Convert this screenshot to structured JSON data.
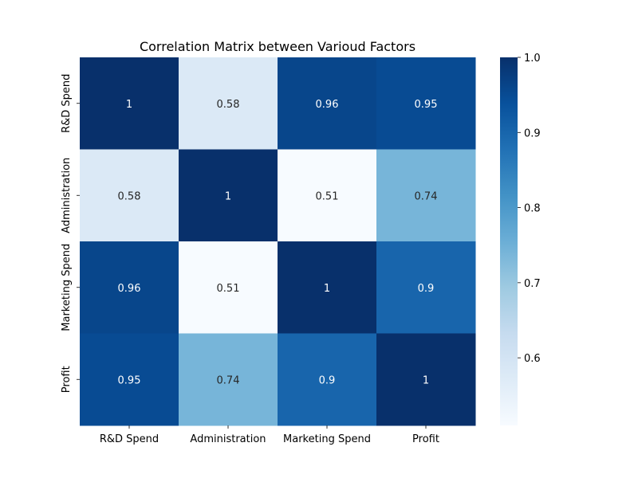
{
  "chart_data": {
    "type": "heatmap",
    "title": "Correlation Matrix between Varioud Factors",
    "x_categories": [
      "R&D Spend",
      "Administration",
      "Marketing Spend",
      "Profit"
    ],
    "y_categories": [
      "R&D Spend",
      "Administration",
      "Marketing Spend",
      "Profit"
    ],
    "values": [
      [
        1.0,
        0.58,
        0.96,
        0.95
      ],
      [
        0.58,
        1.0,
        0.51,
        0.74
      ],
      [
        0.96,
        0.51,
        1.0,
        0.9
      ],
      [
        0.95,
        0.74,
        0.9,
        1.0
      ]
    ],
    "annotations": [
      [
        "1",
        "0.58",
        "0.96",
        "0.95"
      ],
      [
        "0.58",
        "1",
        "0.51",
        "0.74"
      ],
      [
        "0.96",
        "0.51",
        "1",
        "0.9"
      ],
      [
        "0.95",
        "0.74",
        "0.9",
        "1"
      ]
    ],
    "colormap": "Blues",
    "vmin": 0.51,
    "vmax": 1.0,
    "colorbar_ticks": [
      0.6,
      0.7,
      0.8,
      0.9,
      1.0
    ],
    "colorbar_tick_labels": [
      "0.6",
      "0.7",
      "0.8",
      "0.9",
      "1.0"
    ],
    "grid": false,
    "colorbar_position": "right"
  }
}
